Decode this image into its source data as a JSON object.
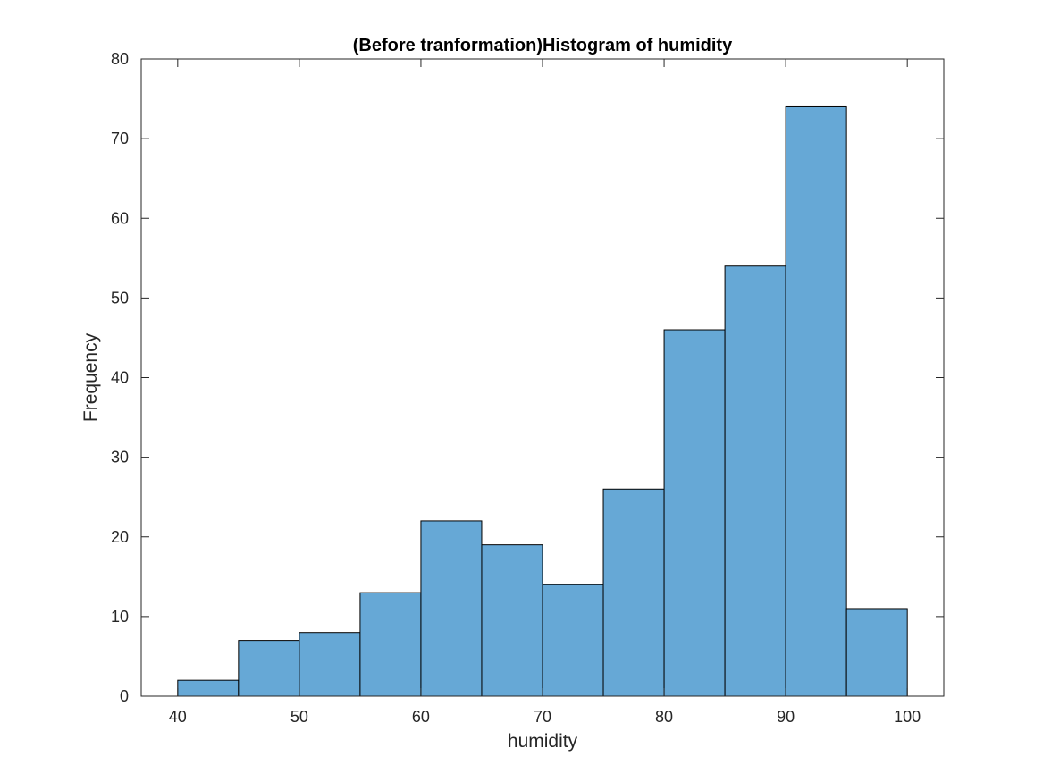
{
  "chart_data": {
    "type": "bar",
    "title": "(Before tranformation)Histogram of humidity",
    "xlabel": "humidity",
    "ylabel": "Frequency",
    "bin_edges": [
      40,
      45,
      50,
      55,
      60,
      65,
      70,
      75,
      80,
      85,
      90,
      95,
      100
    ],
    "values": [
      2,
      7,
      8,
      13,
      22,
      19,
      14,
      26,
      46,
      54,
      74,
      11
    ],
    "xlim": [
      37,
      103
    ],
    "ylim": [
      0,
      80
    ],
    "xticks": [
      40,
      50,
      60,
      70,
      80,
      90,
      100
    ],
    "yticks": [
      0,
      10,
      20,
      30,
      40,
      50,
      60,
      70,
      80
    ],
    "grid": false,
    "legend": "none",
    "bar_color": "#66a8d6",
    "edge_color": "#000000"
  }
}
